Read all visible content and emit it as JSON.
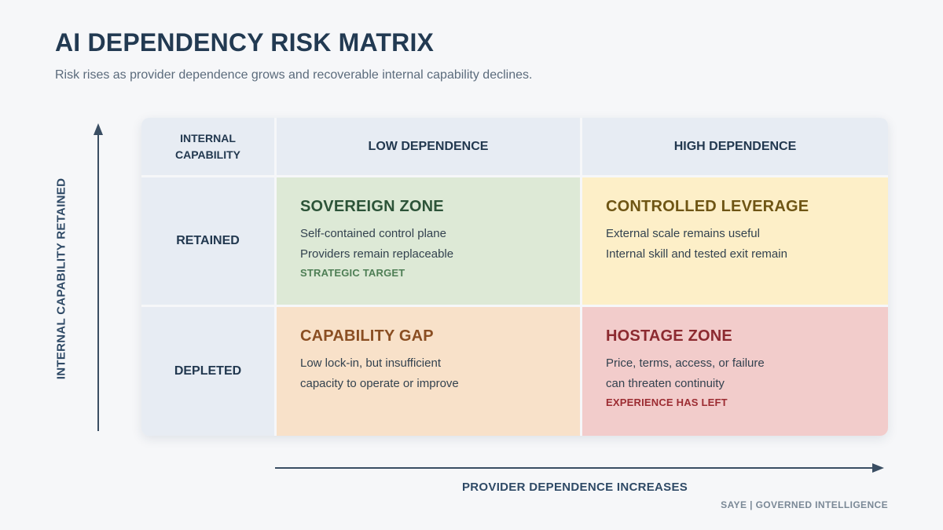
{
  "header": {
    "title": "AI DEPENDENCY RISK MATRIX",
    "subtitle": "Risk rises as provider dependence grows and recoverable internal capability declines."
  },
  "axes": {
    "y_label": "INTERNAL CAPABILITY RETAINED",
    "x_label": "PROVIDER DEPENDENCE INCREASES"
  },
  "matrix": {
    "corner_line1": "INTERNAL",
    "corner_line2": "CAPABILITY",
    "columns": [
      "LOW DEPENDENCE",
      "HIGH DEPENDENCE"
    ],
    "rows": [
      "RETAINED",
      "DEPLETED"
    ],
    "quadrants": {
      "sovereign": {
        "title": "SOVEREIGN ZONE",
        "lines": [
          "Self-contained control plane",
          "Providers remain replaceable"
        ],
        "tag": "STRATEGIC TARGET"
      },
      "leverage": {
        "title": "CONTROLLED LEVERAGE",
        "lines": [
          "External scale remains useful",
          "Internal skill and tested exit remain"
        ]
      },
      "gap": {
        "title": "CAPABILITY GAP",
        "lines": [
          "Low lock-in, but insufficient",
          "capacity to operate or improve"
        ]
      },
      "hostage": {
        "title": "HOSTAGE ZONE",
        "lines": [
          "Price, terms, access, or failure",
          "can threaten continuity"
        ],
        "tag": "EXPERIENCE HAS LEFT"
      }
    }
  },
  "footer": {
    "brand": "SAYE | GOVERNED INTELLIGENCE"
  },
  "colors": {
    "sovereign": "#dde9d6",
    "leverage": "#fdefc8",
    "gap": "#f8e1c9",
    "hostage": "#f2cccb",
    "header": "#e7ecf3"
  }
}
